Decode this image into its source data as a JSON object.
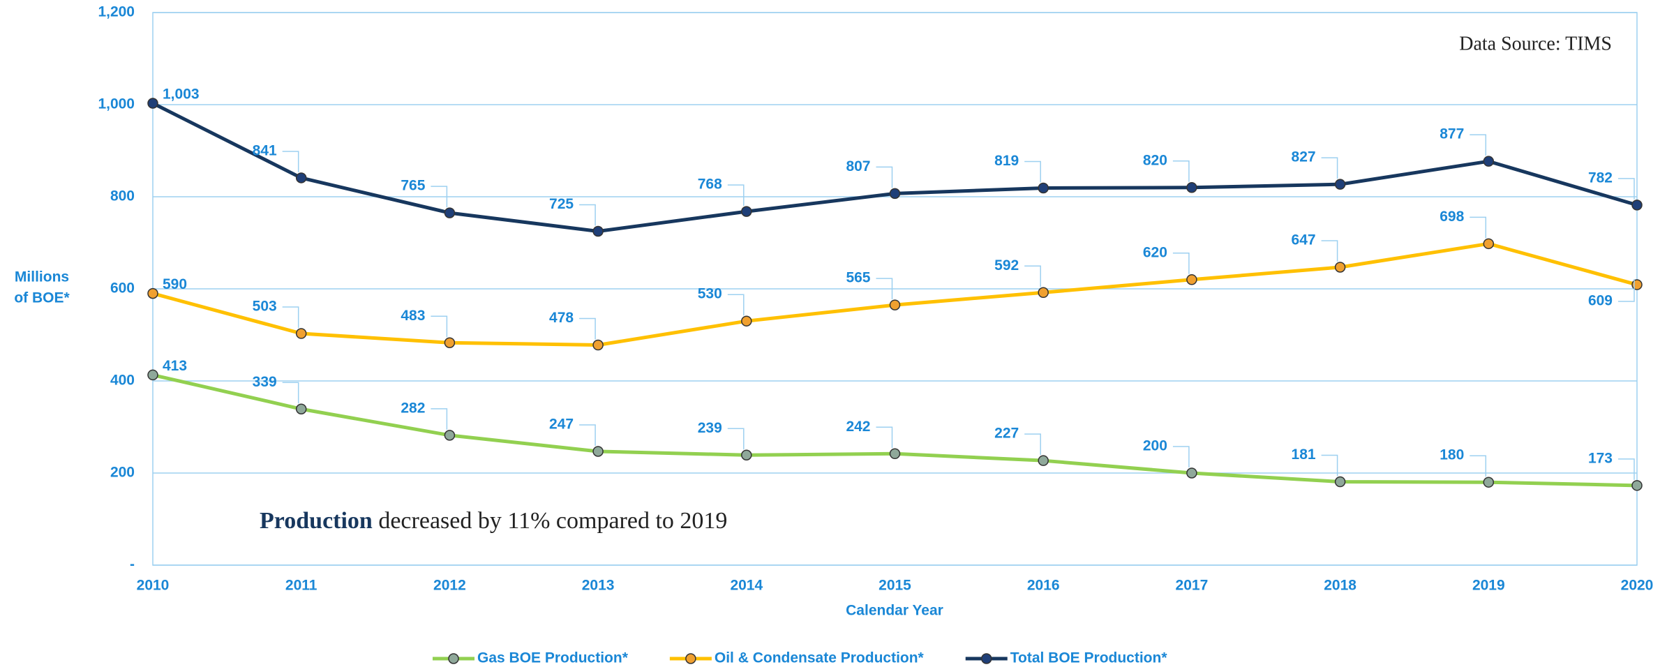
{
  "chart_data": {
    "type": "line",
    "ylabel": [
      "Millions",
      "of BOE*"
    ],
    "xlabel": "Calendar Year",
    "annotations": [
      "Data Source: TIMS",
      {
        "bold": "Production",
        "text": " decreased by 11% compared to 2019"
      }
    ],
    "categories": [
      "2010",
      "2011",
      "2012",
      "2013",
      "2014",
      "2015",
      "2016",
      "2017",
      "2018",
      "2019",
      "2020"
    ],
    "series": [
      {
        "name": "Gas BOE Production*",
        "color": "#92d050",
        "marker": "#8fa89a",
        "values": [
          413,
          339,
          282,
          247,
          239,
          242,
          227,
          200,
          181,
          180,
          173
        ]
      },
      {
        "name": "Oil & Condensate Production*",
        "color": "#ffc000",
        "marker": "#f0a030",
        "values": [
          590,
          503,
          483,
          478,
          530,
          565,
          592,
          620,
          647,
          698,
          609
        ]
      },
      {
        "name": "Total BOE Production*",
        "color": "#17375e",
        "marker": "#1f3f78",
        "values": [
          1003,
          841,
          765,
          725,
          768,
          807,
          819,
          820,
          827,
          877,
          782
        ],
        "value_labels": [
          "1,003",
          "841",
          "765",
          "725",
          "768",
          "807",
          "819",
          "820",
          "827",
          "877",
          "782"
        ]
      }
    ],
    "ylim": [
      0,
      1200
    ],
    "yticks": [
      {
        "value": 0,
        "label": "-"
      },
      200,
      400,
      600,
      800,
      {
        "value": 1000,
        "label": "1,000"
      },
      {
        "value": 1200,
        "label": "1,200"
      }
    ],
    "grid": true,
    "legend": "bottom"
  }
}
